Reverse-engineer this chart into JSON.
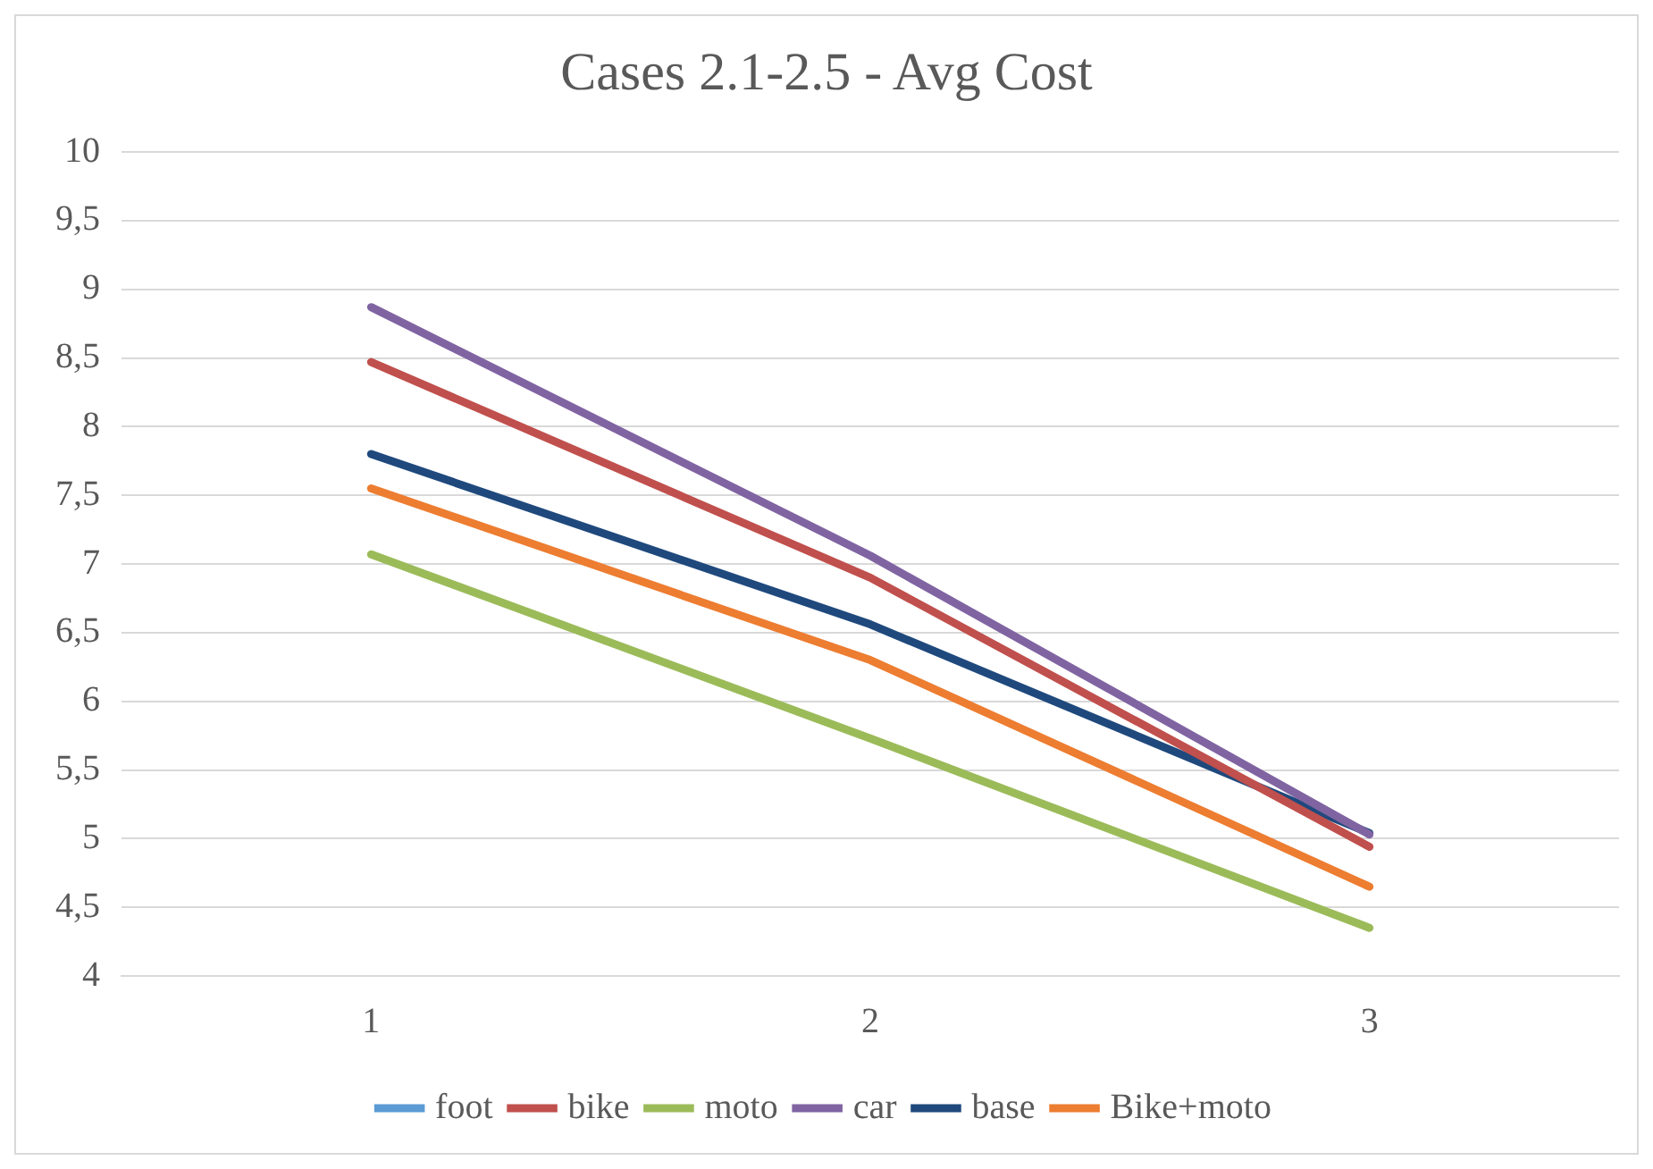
{
  "chart_data": {
    "type": "line",
    "title": "Cases 2.1-2.5 - Avg Cost",
    "categories": [
      "1",
      "2",
      "3"
    ],
    "series": [
      {
        "name": "foot",
        "color": "#5b9bd5",
        "values": [
          null,
          null,
          null
        ]
      },
      {
        "name": "bike",
        "color": "#c0504d",
        "values": [
          8.47,
          6.9,
          4.94
        ]
      },
      {
        "name": "moto",
        "color": "#9bbb59",
        "values": [
          7.07,
          5.73,
          4.35
        ]
      },
      {
        "name": "car",
        "color": "#8064a2",
        "values": [
          8.87,
          7.06,
          5.03
        ]
      },
      {
        "name": "base",
        "color": "#1f497d",
        "values": [
          7.8,
          6.56,
          5.04
        ]
      },
      {
        "name": "Bike+moto",
        "color": "#ed7d31",
        "values": [
          7.55,
          6.3,
          4.65
        ]
      }
    ],
    "ylim": [
      4,
      10
    ],
    "yticks": [
      4,
      {
        "value": 4.5,
        "label": "4,5"
      },
      5,
      {
        "value": 5.5,
        "label": "5,5"
      },
      6,
      {
        "value": 6.5,
        "label": "6,5"
      },
      7,
      {
        "value": 7.5,
        "label": "7,5"
      },
      8,
      {
        "value": 8.5,
        "label": "8,5"
      },
      9,
      {
        "value": 9.5,
        "label": "9,5"
      },
      10
    ],
    "grid": "y",
    "legend": "bottom",
    "marker": "none",
    "line_style": "solid"
  }
}
